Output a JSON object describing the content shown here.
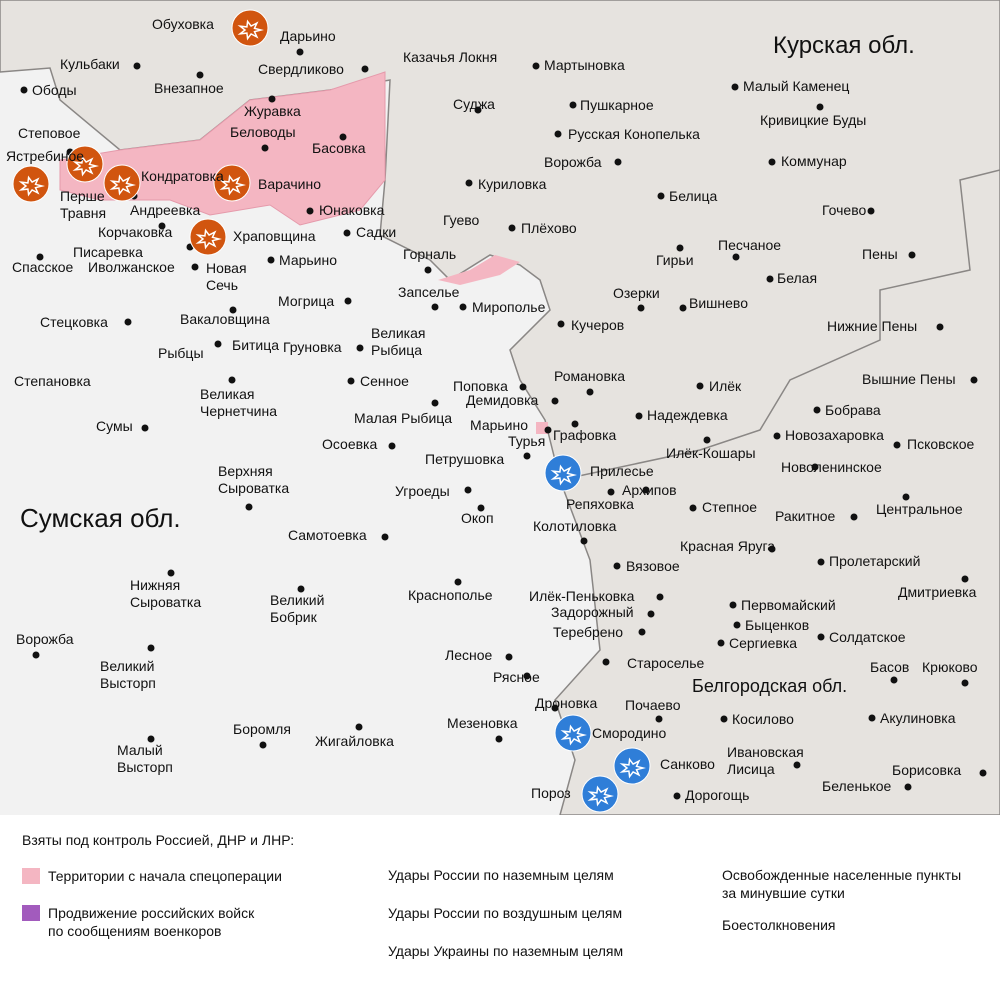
{
  "regions": [
    {
      "label": "Курская обл."
    },
    {
      "label": "Сумская обл."
    },
    {
      "label": "Белгородская обл."
    }
  ],
  "places": [
    {
      "name": "Обуховка"
    },
    {
      "name": "Дарьино"
    },
    {
      "name": "Кульбаки"
    },
    {
      "name": "Свердликово"
    },
    {
      "name": "Казачья Локня"
    },
    {
      "name": "Мартыновка"
    },
    {
      "name": "Ободы"
    },
    {
      "name": "Внезапное"
    },
    {
      "name": "Малый Каменец"
    },
    {
      "name": "Суджа"
    },
    {
      "name": "Пушкарное"
    },
    {
      "name": "Журавка"
    },
    {
      "name": "Кривицкие Буды"
    },
    {
      "name": "Беловоды"
    },
    {
      "name": "Русская Конопелька"
    },
    {
      "name": "Степовое"
    },
    {
      "name": "Басовка"
    },
    {
      "name": "Ястребиное"
    },
    {
      "name": "Ворожба"
    },
    {
      "name": "Коммунар"
    },
    {
      "name": "Кондратовка"
    },
    {
      "name": "Перше\nТравня"
    },
    {
      "name": "Варачино"
    },
    {
      "name": "Куриловка"
    },
    {
      "name": "Белица"
    },
    {
      "name": "Андреевка"
    },
    {
      "name": "Юнаковка"
    },
    {
      "name": "Гочево"
    },
    {
      "name": "Гуево"
    },
    {
      "name": "Плёхово"
    },
    {
      "name": "Корчаковка"
    },
    {
      "name": "Храповщина"
    },
    {
      "name": "Садки"
    },
    {
      "name": "Гирьи"
    },
    {
      "name": "Песчаное"
    },
    {
      "name": "Пены"
    },
    {
      "name": "Писаревка"
    },
    {
      "name": "Горналь"
    },
    {
      "name": "Марьино"
    },
    {
      "name": "Спасское"
    },
    {
      "name": "Иволжанское"
    },
    {
      "name": "Новая\nСечь"
    },
    {
      "name": "Белая"
    },
    {
      "name": "Запселье"
    },
    {
      "name": "Озерки"
    },
    {
      "name": "Могрица"
    },
    {
      "name": "Мирополье"
    },
    {
      "name": "Вишнево"
    },
    {
      "name": "Кучеров"
    },
    {
      "name": "Стецковка"
    },
    {
      "name": "Вакаловщина"
    },
    {
      "name": "Нижние Пены"
    },
    {
      "name": "Великая\nРыбица"
    },
    {
      "name": "Рыбцы"
    },
    {
      "name": "Битица"
    },
    {
      "name": "Груновка"
    },
    {
      "name": "Романовка"
    },
    {
      "name": "Сенное"
    },
    {
      "name": "Степановка"
    },
    {
      "name": "Поповка"
    },
    {
      "name": "Илёк"
    },
    {
      "name": "Вышние Пены"
    },
    {
      "name": "Великая\nЧернетчина"
    },
    {
      "name": "Демидовка"
    },
    {
      "name": "Бобрава"
    },
    {
      "name": "Малая Рыбица"
    },
    {
      "name": "Надеждевка"
    },
    {
      "name": "Марьино"
    },
    {
      "name": "Сумы"
    },
    {
      "name": "Графовка"
    },
    {
      "name": "Турья"
    },
    {
      "name": "Новозахаровка"
    },
    {
      "name": "Псковское"
    },
    {
      "name": "Осоевка"
    },
    {
      "name": "Илёк-Кошары"
    },
    {
      "name": "Петрушовка"
    },
    {
      "name": "Новоленинское"
    },
    {
      "name": "Прилесье"
    },
    {
      "name": "Верхняя\nСыроватка"
    },
    {
      "name": "Угроеды"
    },
    {
      "name": "Архипов"
    },
    {
      "name": "Репяховка"
    },
    {
      "name": "Степное"
    },
    {
      "name": "Ракитное"
    },
    {
      "name": "Центральное"
    },
    {
      "name": "Окоп"
    },
    {
      "name": "Колотиловка"
    },
    {
      "name": "Самотоевка"
    },
    {
      "name": "Красная Яруга"
    },
    {
      "name": "Пролетарский"
    },
    {
      "name": "Вязовое"
    },
    {
      "name": "Нижняя\nСыроватка"
    },
    {
      "name": "Краснополье"
    },
    {
      "name": "Дмитриевка"
    },
    {
      "name": "Великий\nБобрик"
    },
    {
      "name": "Илёк-Пеньковка"
    },
    {
      "name": "Первомайский"
    },
    {
      "name": "Задорожный"
    },
    {
      "name": "Быценков"
    },
    {
      "name": "Теребрено"
    },
    {
      "name": "Сергиевка"
    },
    {
      "name": "Солдатское"
    },
    {
      "name": "Ворожба"
    },
    {
      "name": "Лесное"
    },
    {
      "name": "Великий\nВысторп"
    },
    {
      "name": "Староселье"
    },
    {
      "name": "Басов"
    },
    {
      "name": "Крюково"
    },
    {
      "name": "Рясное"
    },
    {
      "name": "Дроновка"
    },
    {
      "name": "Почаево"
    },
    {
      "name": "Мезеновка"
    },
    {
      "name": "Косилово"
    },
    {
      "name": "Акулиновка"
    },
    {
      "name": "Боромля"
    },
    {
      "name": "Смородино"
    },
    {
      "name": "Жигайловка"
    },
    {
      "name": "Малый\nВысторп"
    },
    {
      "name": "Ивановская\nЛисица"
    },
    {
      "name": "Санково"
    },
    {
      "name": "Борисовка"
    },
    {
      "name": "Беленькое"
    },
    {
      "name": "Дорогощь"
    },
    {
      "name": "Пороз"
    }
  ],
  "legend": {
    "title": "Взяты под контроль Россией, ДНР и ЛНР:",
    "items": [
      {
        "label": "Территории с начала спецоперации"
      },
      {
        "label": "Продвижение российских войск\nпо сообщениям военкоров"
      },
      {
        "label": "Удары России по наземным целям"
      },
      {
        "label": "Удары России по воздушным целям"
      },
      {
        "label": "Удары Украины по наземным целям"
      },
      {
        "label": "Освобожденные населенные пункты\nза минувшие сутки"
      },
      {
        "label": "Боестолкновения"
      }
    ]
  }
}
